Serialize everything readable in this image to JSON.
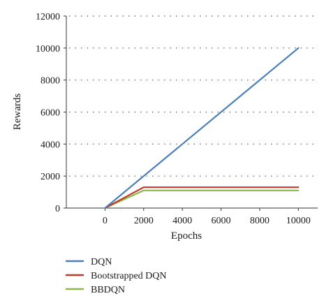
{
  "chart_data": {
    "type": "line",
    "title": "",
    "xlabel": "Epochs",
    "ylabel": "Rewards",
    "xlim": [
      -2000,
      11000
    ],
    "ylim": [
      0,
      12000
    ],
    "xticks": [
      0,
      2000,
      4000,
      6000,
      8000,
      10000
    ],
    "yticks": [
      0,
      2000,
      4000,
      6000,
      8000,
      10000,
      12000
    ],
    "grid": "horizontal-dotted",
    "legend_position": "bottom-left",
    "series": [
      {
        "name": "DQN",
        "color": "#4a7ebb",
        "x": [
          0,
          10000
        ],
        "y": [
          0,
          10000
        ]
      },
      {
        "name": "Bootstrapped DQN",
        "color": "#c0392b",
        "x": [
          0,
          2000,
          10000
        ],
        "y": [
          0,
          1300,
          1300
        ]
      },
      {
        "name": "BBDQN",
        "color": "#8cb84a",
        "x": [
          0,
          2000,
          10000
        ],
        "y": [
          0,
          1100,
          1100
        ]
      }
    ]
  }
}
